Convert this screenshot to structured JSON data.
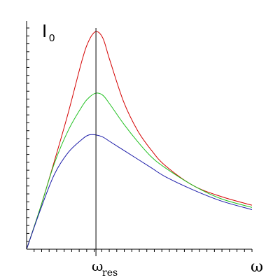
{
  "chart_data": {
    "type": "line",
    "title": "",
    "ylabel": "I",
    "ylabel_sub": "0",
    "xlabel": "ω",
    "xtick_label": "ω",
    "xtick_sub": "res",
    "xlim": [
      0,
      3.25
    ],
    "ylim": [
      0,
      1.0
    ],
    "x_resonance": 1.0,
    "grid": false,
    "legend": "none",
    "series": [
      {
        "color": "#d40000",
        "values": [
          [
            0,
            0
          ],
          [
            0.2,
            0.19
          ],
          [
            0.4,
            0.4
          ],
          [
            0.6,
            0.62
          ],
          [
            0.8,
            0.86
          ],
          [
            0.9,
            0.95
          ],
          [
            1.0,
            0.99
          ],
          [
            1.1,
            0.96
          ],
          [
            1.2,
            0.86
          ],
          [
            1.4,
            0.67
          ],
          [
            1.6,
            0.54
          ],
          [
            1.8,
            0.45
          ],
          [
            2.0,
            0.38
          ],
          [
            2.4,
            0.29
          ],
          [
            2.8,
            0.24
          ],
          [
            3.25,
            0.2
          ]
        ]
      },
      {
        "color": "#20c020",
        "values": [
          [
            0,
            0
          ],
          [
            0.2,
            0.19
          ],
          [
            0.4,
            0.39
          ],
          [
            0.6,
            0.54
          ],
          [
            0.8,
            0.65
          ],
          [
            0.9,
            0.69
          ],
          [
            1.0,
            0.71
          ],
          [
            1.1,
            0.7
          ],
          [
            1.2,
            0.66
          ],
          [
            1.4,
            0.57
          ],
          [
            1.6,
            0.49
          ],
          [
            1.8,
            0.42
          ],
          [
            2.0,
            0.37
          ],
          [
            2.4,
            0.29
          ],
          [
            2.8,
            0.23
          ],
          [
            3.25,
            0.19
          ]
        ]
      },
      {
        "color": "#1a1aa8",
        "values": [
          [
            0,
            0
          ],
          [
            0.2,
            0.18
          ],
          [
            0.4,
            0.34
          ],
          [
            0.6,
            0.44
          ],
          [
            0.8,
            0.5
          ],
          [
            0.9,
            0.52
          ],
          [
            1.0,
            0.52
          ],
          [
            1.1,
            0.51
          ],
          [
            1.2,
            0.49
          ],
          [
            1.4,
            0.45
          ],
          [
            1.6,
            0.41
          ],
          [
            1.8,
            0.37
          ],
          [
            2.0,
            0.33
          ],
          [
            2.4,
            0.27
          ],
          [
            2.8,
            0.22
          ],
          [
            3.25,
            0.18
          ]
        ]
      }
    ],
    "x_ticks": 30,
    "y_ticks": 28
  }
}
